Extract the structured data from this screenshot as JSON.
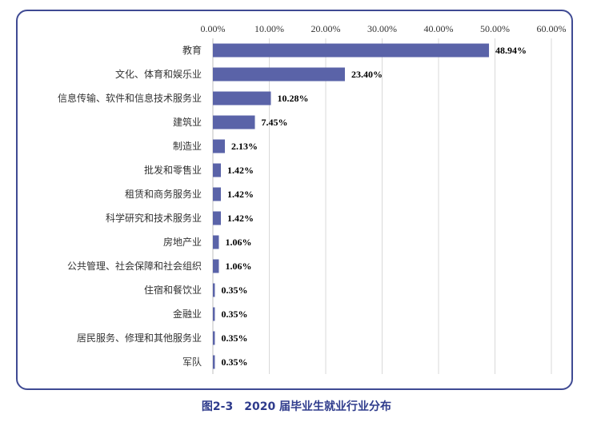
{
  "caption": "图2-3　2020 届毕业生就业行业分布",
  "colors": {
    "bar": "#5a63a8",
    "grid": "#d9d9d9",
    "frame": "#3f4a93"
  },
  "chart_data": {
    "type": "bar",
    "orientation": "horizontal",
    "categories": [
      "教育",
      "文化、体育和娱乐业",
      "信息传输、软件和信息技术服务业",
      "建筑业",
      "制造业",
      "批发和零售业",
      "租赁和商务服务业",
      "科学研究和技术服务业",
      "房地产业",
      "公共管理、社会保障和社会组织",
      "住宿和餐饮业",
      "金融业",
      "居民服务、修理和其他服务业",
      "军队"
    ],
    "values": [
      48.94,
      23.4,
      10.28,
      7.45,
      2.13,
      1.42,
      1.42,
      1.42,
      1.06,
      1.06,
      0.35,
      0.35,
      0.35,
      0.35
    ],
    "value_labels": [
      "48.94%",
      "23.40%",
      "10.28%",
      "7.45%",
      "2.13%",
      "1.42%",
      "1.42%",
      "1.42%",
      "1.06%",
      "1.06%",
      "0.35%",
      "0.35%",
      "0.35%",
      "0.35%"
    ],
    "xticks": [
      "0.00%",
      "10.00%",
      "20.00%",
      "30.00%",
      "40.00%",
      "50.00%",
      "60.00%"
    ],
    "xlim": [
      0,
      60
    ],
    "x_axis_position": "top",
    "grid": true,
    "legend": "none"
  }
}
